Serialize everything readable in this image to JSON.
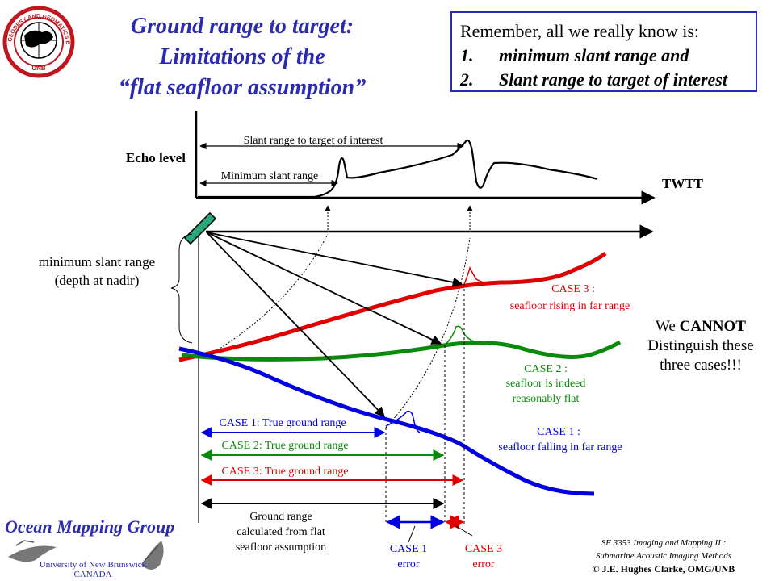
{
  "title": {
    "line1": "Ground range to target:",
    "line2": "Limitations of the",
    "line3": "“flat seafloor assumption”"
  },
  "remember": {
    "heading": "Remember, all we really know is:",
    "items": [
      {
        "num": "1.",
        "text": "minimum slant range and"
      },
      {
        "num": "2.",
        "text": "Slant range to target of interest"
      }
    ]
  },
  "logo": {
    "ring_text": "GEODESY AND GEOMATICS ENGINEERING",
    "bottom_text": "UNB"
  },
  "echo": {
    "echo_level": "Echo level",
    "twtt": "TWTT",
    "slant_target": "Slant range to target of interest",
    "min_slant": "Minimum slant range"
  },
  "left_label": {
    "line1": "minimum slant range",
    "line2": "(depth at nadir)"
  },
  "cases": {
    "case3_title": "CASE 3 :",
    "case3_desc": "seafloor rising in far range",
    "case2_title": "CASE 2 :",
    "case2_desc1": "seafloor is indeed",
    "case2_desc2": "reasonably flat",
    "case1_title": "CASE 1 :",
    "case1_desc": "seafloor falling in far range"
  },
  "cannot": {
    "line1_pre": "We ",
    "line1_bold": "CANNOT",
    "line2": "Distinguish these",
    "line3": "three cases!!!"
  },
  "ranges": {
    "case1": "CASE 1: True ground range",
    "case2": "CASE 2: True ground range",
    "case3": "CASE 3: True ground range",
    "flat1": "Ground range",
    "flat2": "calculated from flat",
    "flat3": "seafloor assumption"
  },
  "errors": {
    "case1_a": "CASE 1",
    "case1_b": "error",
    "case3_a": "CASE 3",
    "case3_b": "error"
  },
  "footer": {
    "course1": "SE 3353 Imaging and Mapping II :",
    "course2": "Submarine Acoustic Imaging Methods",
    "copyright": "© J.E. Hughes Clarke, OMG/UNB",
    "group": "Ocean Mapping Group",
    "uni": "University of New Brunswick",
    "country": "CANADA"
  },
  "colors": {
    "title_blue": "#2b2bb0",
    "case1_blue": "#0000e0",
    "case2_green": "#0a8a0a",
    "case3_red": "#e00000",
    "transducer": "#2aa87a"
  }
}
